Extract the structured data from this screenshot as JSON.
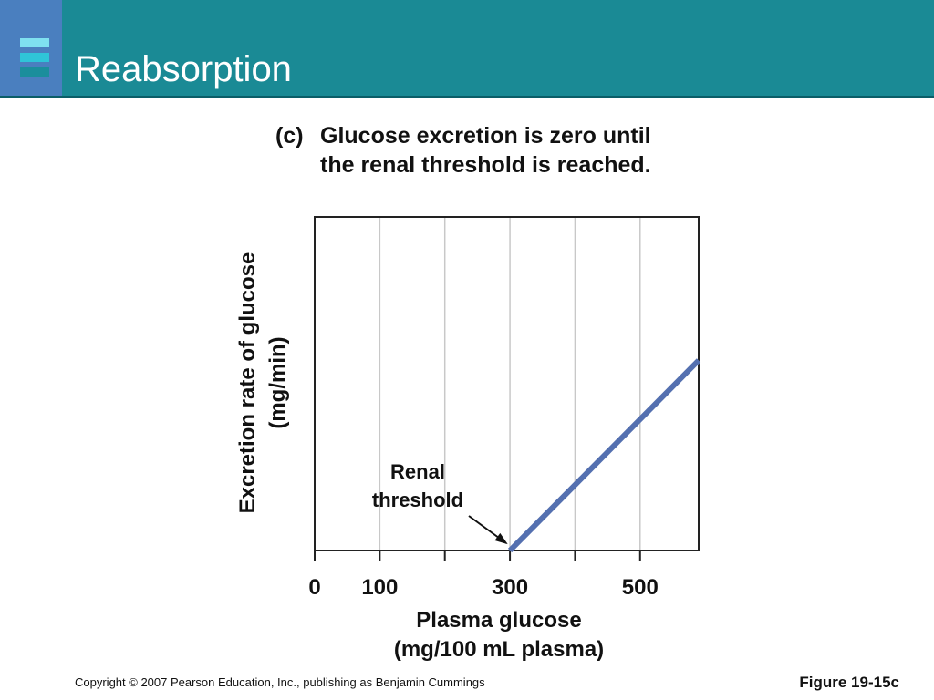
{
  "slide": {
    "title": "Reabsorption",
    "footer_copyright": "Copyright © 2007 Pearson Education, Inc., publishing as Benjamin Cummings",
    "figure_label": "Figure 19-15c",
    "colors": {
      "header": "#1a8a95",
      "header_rule": "#0b5e68",
      "side_block": "#4a7fbf",
      "menu_bars": [
        "#7fe0f0",
        "#2fc4d8",
        "#1b8e9c"
      ],
      "line": "#5470b0"
    },
    "menu_icon": "menu-icon"
  },
  "chart_data": {
    "type": "line",
    "panel_label": "(c)",
    "title_lines": [
      "Glucose excretion is zero until",
      "the renal threshold is reached."
    ],
    "xlabel_lines": [
      "Plasma glucose",
      "(mg/100 mL plasma)"
    ],
    "ylabel_lines": [
      "Excretion rate of glucose",
      "(mg/min)"
    ],
    "xlim": [
      0,
      590
    ],
    "ylim": [
      0,
      100
    ],
    "x_ticks": [
      0,
      100,
      200,
      300,
      400,
      500
    ],
    "x_tick_labels": [
      "0",
      "100",
      "",
      "300",
      "",
      "500"
    ],
    "grid": true,
    "series": [
      {
        "x": [
          300,
          590
        ],
        "y": [
          0,
          57
        ]
      }
    ],
    "annotation": {
      "text_lines": [
        "Renal",
        "threshold"
      ],
      "points_to": {
        "x": 300,
        "y": 0
      }
    }
  }
}
